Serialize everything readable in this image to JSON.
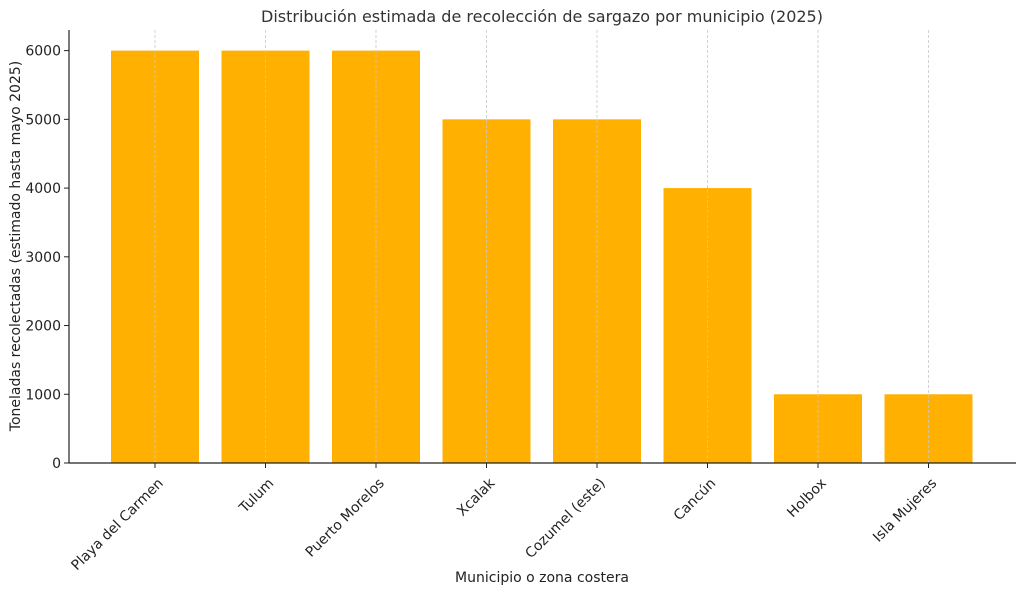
{
  "chart_data": {
    "type": "bar",
    "title": "Distribución estimada de recolección de sargazo por municipio (2025)",
    "xlabel": "Municipio o zona costera",
    "ylabel": "Toneladas recolectadas (estimado hasta mayo 2025)",
    "categories": [
      "Playa del Carmen",
      "Tulum",
      "Puerto Morelos",
      "Xcalak",
      "Cozumel (este)",
      "Cancún",
      "Holbox",
      "Isla Mujeres"
    ],
    "values": [
      6000,
      6000,
      6000,
      5000,
      5000,
      4000,
      1000,
      1000
    ],
    "ylim": [
      0,
      6300
    ],
    "yticks": [
      0,
      1000,
      2000,
      3000,
      4000,
      5000,
      6000
    ],
    "grid": "x-dashed",
    "bar_color": "#ffb000"
  }
}
